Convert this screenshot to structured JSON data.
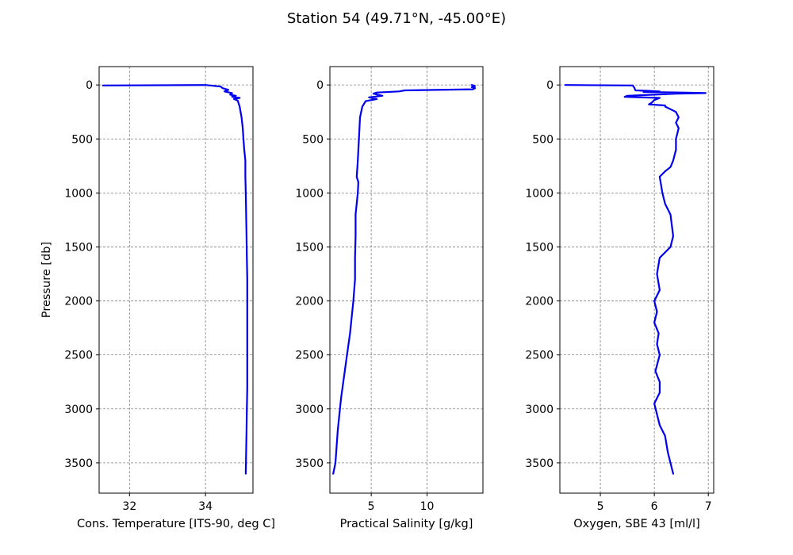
{
  "title": "Station 54 (49.71°N, -45.00°E)",
  "colors": {
    "line": "#0000ee",
    "grid": "#808080",
    "axes": "#000000",
    "background": "#ffffff"
  },
  "chart_data": [
    {
      "type": "line",
      "xlabel": "Cons. Temperature [ITS-90, deg C]",
      "ylabel": "Pressure [db]",
      "xlim": [
        31.2,
        35.25
      ],
      "ylim": [
        3780,
        -170
      ],
      "y_inverted": true,
      "xticks": [
        32,
        34
      ],
      "xtick_labels": [
        "32",
        "34"
      ],
      "yticks": [
        0,
        500,
        1000,
        1500,
        2000,
        2500,
        3000,
        3500
      ],
      "ytick_labels": [
        "0",
        "500",
        "1000",
        "1500",
        "2000",
        "2500",
        "3000",
        "3500"
      ],
      "grid": true,
      "series": [
        {
          "name": "Cons. Temperature",
          "x": [
            31.3,
            34.0,
            34.4,
            34.45,
            34.6,
            34.5,
            34.7,
            34.65,
            34.8,
            34.7,
            34.9,
            34.75,
            34.85,
            34.9,
            34.95,
            34.98,
            35.0,
            35.02,
            35.05,
            35.05,
            35.06,
            35.07,
            35.08,
            35.09,
            35.1,
            35.1,
            35.1,
            35.1,
            35.09,
            35.08,
            35.07,
            35.06
          ],
          "y": [
            5,
            0,
            15,
            30,
            45,
            60,
            75,
            90,
            100,
            110,
            120,
            130,
            145,
            200,
            300,
            400,
            500,
            600,
            700,
            850,
            1000,
            1200,
            1400,
            1600,
            1800,
            2000,
            2400,
            2800,
            3000,
            3200,
            3400,
            3600
          ]
        }
      ]
    },
    {
      "type": "line",
      "xlabel": "Practical Salinity [g/kg]",
      "ylabel": "",
      "xlim": [
        1.3,
        15.0
      ],
      "ylim": [
        3780,
        -170
      ],
      "y_inverted": true,
      "xticks": [
        5,
        10
      ],
      "xtick_labels": [
        "5",
        "10"
      ],
      "yticks": [
        0,
        500,
        1000,
        1500,
        2000,
        2500,
        3000,
        3500
      ],
      "ytick_labels": [
        "0",
        "500",
        "1000",
        "1500",
        "2000",
        "2500",
        "3000",
        "3500"
      ],
      "grid": true,
      "series": [
        {
          "name": "Practical Salinity",
          "x": [
            14.0,
            14.3,
            14.0,
            14.2,
            14.3,
            14.1,
            8.0,
            7.5,
            5.5,
            5.2,
            6.0,
            4.8,
            5.5,
            4.5,
            4.2,
            4.0,
            3.9,
            3.85,
            3.8,
            3.75,
            3.7,
            3.85,
            3.8,
            3.6,
            3.6,
            3.55,
            3.55,
            3.4,
            3.1,
            2.7,
            2.3,
            2.0,
            1.8,
            1.6
          ],
          "y": [
            0,
            10,
            20,
            25,
            30,
            40,
            50,
            60,
            70,
            80,
            100,
            115,
            130,
            150,
            200,
            300,
            500,
            600,
            700,
            780,
            850,
            900,
            1000,
            1200,
            1400,
            1600,
            1800,
            2000,
            2300,
            2600,
            2900,
            3200,
            3500,
            3600
          ]
        }
      ]
    },
    {
      "type": "line",
      "xlabel": "Oxygen, SBE 43 [ml/l]",
      "ylabel": "",
      "xlim": [
        4.25,
        7.1
      ],
      "ylim": [
        3780,
        -170
      ],
      "y_inverted": true,
      "xticks": [
        5,
        6,
        7
      ],
      "xtick_labels": [
        "5",
        "6",
        "7"
      ],
      "yticks": [
        0,
        500,
        1000,
        1500,
        2000,
        2500,
        3000,
        3500
      ],
      "ytick_labels": [
        "0",
        "500",
        "1000",
        "1500",
        "2000",
        "2500",
        "3000",
        "3500"
      ],
      "grid": true,
      "series": [
        {
          "name": "Oxygen",
          "x": [
            4.35,
            5.6,
            5.63,
            5.65,
            5.9,
            6.1,
            5.8,
            6.5,
            6.95,
            6.4,
            6.0,
            5.5,
            5.45,
            6.1,
            6.0,
            5.95,
            5.9,
            6.2,
            6.2,
            6.4,
            6.45,
            6.4,
            6.45,
            6.4,
            6.4,
            6.35,
            6.3,
            6.2,
            6.1,
            6.15,
            6.2,
            6.3,
            6.35,
            6.3,
            6.1,
            6.05,
            6.1,
            6.0,
            6.05,
            6.0,
            6.08,
            6.05,
            6.1,
            6.02,
            6.1,
            6.1,
            6.0,
            6.05,
            6.1,
            6.2,
            6.25,
            6.3,
            6.35
          ],
          "y": [
            0,
            5,
            25,
            50,
            55,
            60,
            65,
            70,
            75,
            80,
            90,
            100,
            110,
            120,
            140,
            165,
            180,
            190,
            200,
            250,
            300,
            350,
            400,
            500,
            600,
            700,
            760,
            800,
            850,
            1000,
            1100,
            1200,
            1400,
            1500,
            1600,
            1750,
            1900,
            2000,
            2100,
            2200,
            2300,
            2400,
            2500,
            2650,
            2750,
            2850,
            2950,
            3050,
            3150,
            3250,
            3400,
            3500,
            3600
          ]
        }
      ]
    }
  ]
}
